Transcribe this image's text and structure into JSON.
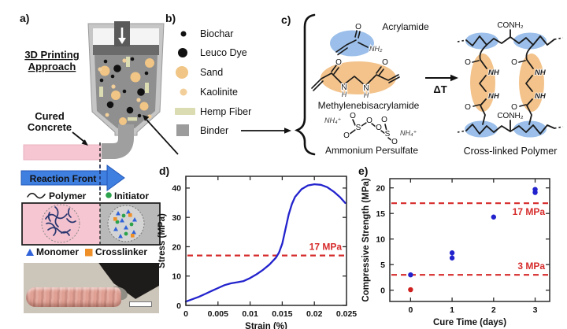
{
  "figure_labels": {
    "a": "a)",
    "b": "b)",
    "c": "c)",
    "d": "d)",
    "e": "e)"
  },
  "panel_a": {
    "title_l1": "3D Printing",
    "title_l2": "Approach",
    "cured_l1": "Cured",
    "cured_l2": "Concrete",
    "reaction_front": "Reaction Front",
    "polymer": "Polymer",
    "initiator": "Initiator",
    "monomer": "Monomer",
    "crosslinker": "Crosslinker"
  },
  "legend_b": {
    "items": [
      {
        "icon": "biochar-dot-icon",
        "label": "Biochar"
      },
      {
        "icon": "leuco-dye-dot-icon",
        "label": "Leuco Dye"
      },
      {
        "icon": "sand-dot-icon",
        "label": "Sand"
      },
      {
        "icon": "kaolinite-dot-icon",
        "label": "Kaolinite"
      },
      {
        "icon": "hemp-fiber-rect-icon",
        "label": "Hemp Fiber"
      },
      {
        "icon": "binder-square-icon",
        "label": "Binder"
      }
    ]
  },
  "panel_c": {
    "acrylamide": "Acrylamide",
    "mba": "Methylenebisacrylamide",
    "aps": "Ammonium Persulfate",
    "delta_t": "ΔT",
    "crosslinked": "Cross-linked Polymer",
    "atoms": {
      "o": "O",
      "s": "S",
      "n": "N",
      "h": "H",
      "nh": "NH",
      "nh2": "NH₂",
      "nh4": "NH₄⁺",
      "conh2": "CONH₂"
    }
  },
  "chart_data": [
    {
      "id": "d",
      "type": "line",
      "title": "",
      "xlabel": "Strain (%)",
      "ylabel": "Stress (MPa)",
      "xlim": [
        0,
        0.025
      ],
      "ylim": [
        0,
        44
      ],
      "grid": false,
      "legend": "none",
      "xticks": [
        0,
        0.005,
        0.01,
        0.015,
        0.02,
        0.025
      ],
      "xtick_labels": [
        "0",
        "0.005",
        "0.01",
        "0.015",
        "0.02",
        "0.025"
      ],
      "yticks": [
        0,
        10,
        20,
        30,
        40
      ],
      "ytick_labels": [
        "0",
        "10",
        "20",
        "30",
        "40"
      ],
      "series": [
        {
          "name": "stress-strain-curve",
          "color": "#2323cd",
          "points": [
            [
              0,
              1.3
            ],
            [
              0.001,
              2.1
            ],
            [
              0.002,
              2.9
            ],
            [
              0.003,
              3.9
            ],
            [
              0.004,
              4.9
            ],
            [
              0.005,
              5.9
            ],
            [
              0.006,
              6.9
            ],
            [
              0.007,
              7.5
            ],
            [
              0.008,
              7.9
            ],
            [
              0.009,
              8.3
            ],
            [
              0.01,
              9.3
            ],
            [
              0.011,
              10.6
            ],
            [
              0.012,
              12.1
            ],
            [
              0.013,
              13.9
            ],
            [
              0.014,
              16.2
            ],
            [
              0.0145,
              18.0
            ],
            [
              0.015,
              21.0
            ],
            [
              0.0155,
              26.0
            ],
            [
              0.016,
              31.0
            ],
            [
              0.0165,
              34.5
            ],
            [
              0.017,
              37.0
            ],
            [
              0.018,
              39.6
            ],
            [
              0.019,
              40.9
            ],
            [
              0.02,
              41.3
            ],
            [
              0.021,
              41.1
            ],
            [
              0.022,
              40.3
            ],
            [
              0.023,
              38.8
            ],
            [
              0.024,
              36.9
            ],
            [
              0.0248,
              34.9
            ]
          ]
        }
      ],
      "ref_lines": [
        {
          "y": 17,
          "label": "17 MPa",
          "label_pos": "above"
        }
      ]
    },
    {
      "id": "e",
      "type": "scatter",
      "title": "",
      "xlabel": "Cure Time (days)",
      "ylabel": "Compressive Strength (MPa)",
      "xlim": [
        -0.5,
        3.35
      ],
      "ylim": [
        -2.2,
        21.8
      ],
      "grid": false,
      "legend": "none",
      "xticks": [
        0,
        1,
        2,
        3
      ],
      "xtick_labels": [
        "0",
        "1",
        "2",
        "3"
      ],
      "yticks": [
        0,
        5,
        10,
        15,
        20
      ],
      "ytick_labels": [
        "0",
        "5",
        "10",
        "15",
        "20"
      ],
      "series": [
        {
          "name": "cured-samples",
          "color": "#2323cd",
          "points": [
            [
              0,
              3.0
            ],
            [
              1,
              6.3
            ],
            [
              1,
              7.3
            ],
            [
              2,
              14.3
            ],
            [
              3,
              19.1
            ],
            [
              3,
              19.7
            ]
          ]
        },
        {
          "name": "uncured-sample",
          "color": "#cf2020",
          "points": [
            [
              0,
              0.1
            ]
          ]
        }
      ],
      "ref_lines": [
        {
          "y": 17,
          "label": "17 MPa",
          "label_pos": "below"
        },
        {
          "y": 3,
          "label": "3 MPa",
          "label_pos": "above"
        }
      ]
    }
  ],
  "colors": {
    "curve_blue": "#2323cd",
    "ref_red": "#d62a2a",
    "pink_concrete": "#f6c6d2",
    "sand": "#f0c585",
    "kaolinite": "#f2cf9a",
    "hemp": "#dcdcb2",
    "binder_gray": "#9c9c9c",
    "slurry_gray": "#8f8f8f",
    "shell_gray": "#c6c6c6",
    "reaction_arrow_blue": "#3f7fe0",
    "initiator_green": "#2ba24b",
    "monomer_blue": "#2f62d8",
    "crosslinker_orange": "#ef8f27",
    "polymer_navy": "#28356f",
    "highlight_blue": "#90b8e8",
    "highlight_orange": "#f2bc7e"
  }
}
